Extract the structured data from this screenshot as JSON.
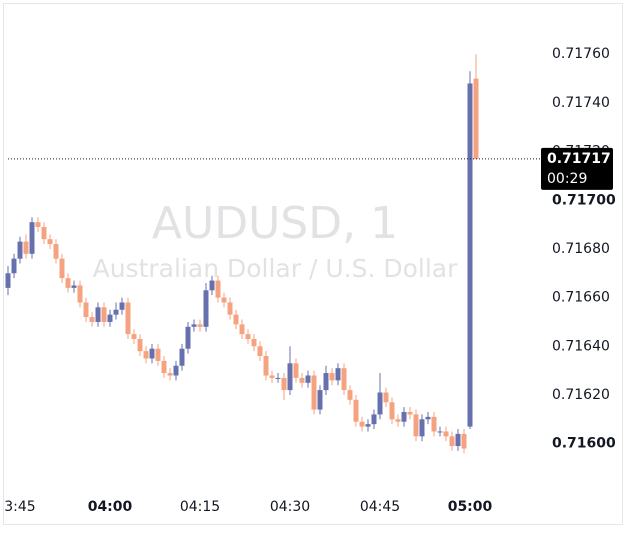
{
  "chart_data": {
    "type": "candlestick",
    "watermark_title": "AUDUSD, 1",
    "watermark_subtitle": "Australian Dollar / U.S. Dollar",
    "up_color": "#6670ac",
    "down_color": "#f4a27f",
    "x": [
      "03:43",
      "03:44",
      "03:45",
      "03:46",
      "03:47",
      "03:48",
      "03:49",
      "03:50",
      "03:51",
      "03:52",
      "03:53",
      "03:54",
      "03:55",
      "03:56",
      "03:57",
      "03:58",
      "03:59",
      "04:00",
      "04:01",
      "04:02",
      "04:03",
      "04:04",
      "04:05",
      "04:06",
      "04:07",
      "04:08",
      "04:09",
      "04:10",
      "04:11",
      "04:12",
      "04:13",
      "04:14",
      "04:15",
      "04:16",
      "04:17",
      "04:18",
      "04:19",
      "04:20",
      "04:21",
      "04:22",
      "04:23",
      "04:24",
      "04:25",
      "04:26",
      "04:27",
      "04:28",
      "04:29",
      "04:30",
      "04:31",
      "04:32",
      "04:33",
      "04:34",
      "04:35",
      "04:36",
      "04:37",
      "04:38",
      "04:39",
      "04:40",
      "04:41",
      "04:42",
      "04:43",
      "04:44",
      "04:45",
      "04:46",
      "04:47",
      "04:48",
      "04:49",
      "04:50",
      "04:51",
      "04:52",
      "04:53",
      "04:54",
      "04:55",
      "04:56",
      "04:57",
      "04:58",
      "04:59",
      "05:00",
      "05:01"
    ],
    "open": [
      0.71664,
      0.7167,
      0.71676,
      0.71683,
      0.71678,
      0.71691,
      0.71689,
      0.71684,
      0.71682,
      0.71676,
      0.71668,
      0.71664,
      0.71665,
      0.71658,
      0.71652,
      0.7165,
      0.71656,
      0.7165,
      0.71653,
      0.71655,
      0.71658,
      0.71645,
      0.71643,
      0.71638,
      0.71635,
      0.71639,
      0.71634,
      0.71629,
      0.71628,
      0.71632,
      0.71639,
      0.71648,
      0.71649,
      0.71648,
      0.71663,
      0.71667,
      0.7166,
      0.71658,
      0.71653,
      0.71649,
      0.71645,
      0.71643,
      0.7164,
      0.71636,
      0.71628,
      0.71627,
      0.71627,
      0.71622,
      0.71633,
      0.71627,
      0.71625,
      0.71628,
      0.71614,
      0.71622,
      0.71629,
      0.71626,
      0.71631,
      0.71622,
      0.71618,
      0.71609,
      0.71607,
      0.71608,
      0.71612,
      0.71621,
      0.71617,
      0.7161,
      0.71609,
      0.71613,
      0.71612,
      0.71603,
      0.7161,
      0.71611,
      0.71605,
      0.71605,
      0.71603,
      0.71599,
      0.71604,
      0.71607,
      0.7175
    ],
    "high": [
      0.71673,
      0.71678,
      0.71685,
      0.71686,
      0.71693,
      0.71693,
      0.71691,
      0.71686,
      0.71684,
      0.71678,
      0.7167,
      0.71667,
      0.71667,
      0.7166,
      0.71654,
      0.71658,
      0.71658,
      0.71655,
      0.71658,
      0.7166,
      0.7166,
      0.71647,
      0.71645,
      0.7164,
      0.71641,
      0.71641,
      0.71636,
      0.71631,
      0.71634,
      0.71641,
      0.7165,
      0.71651,
      0.71651,
      0.71666,
      0.71669,
      0.71669,
      0.71662,
      0.7166,
      0.71655,
      0.71651,
      0.71647,
      0.71645,
      0.71642,
      0.71638,
      0.7163,
      0.71629,
      0.71629,
      0.7164,
      0.71635,
      0.71629,
      0.7163,
      0.7163,
      0.71624,
      0.71632,
      0.71631,
      0.71633,
      0.71633,
      0.71624,
      0.7162,
      0.71611,
      0.7161,
      0.71614,
      0.71629,
      0.71623,
      0.71619,
      0.71612,
      0.71615,
      0.71615,
      0.71614,
      0.71612,
      0.71613,
      0.71613,
      0.71607,
      0.71607,
      0.71605,
      0.71606,
      0.71606,
      0.71753,
      0.7176
    ],
    "low": [
      0.71661,
      0.71668,
      0.71674,
      0.71676,
      0.71676,
      0.71687,
      0.71682,
      0.7168,
      0.71674,
      0.71666,
      0.71662,
      0.71662,
      0.71656,
      0.7165,
      0.71648,
      0.71648,
      0.71648,
      0.71648,
      0.71651,
      0.71653,
      0.71643,
      0.71641,
      0.71636,
      0.71633,
      0.71633,
      0.71632,
      0.71627,
      0.71626,
      0.71626,
      0.7163,
      0.71637,
      0.71646,
      0.71646,
      0.71646,
      0.71661,
      0.71658,
      0.71656,
      0.71651,
      0.71647,
      0.71643,
      0.71641,
      0.71638,
      0.71634,
      0.71626,
      0.71625,
      0.71625,
      0.71618,
      0.7162,
      0.71625,
      0.71623,
      0.71623,
      0.71612,
      0.71612,
      0.7162,
      0.71624,
      0.71624,
      0.7162,
      0.71616,
      0.71607,
      0.71605,
      0.71605,
      0.71606,
      0.7161,
      0.71615,
      0.71608,
      0.71607,
      0.71607,
      0.7161,
      0.71601,
      0.71601,
      0.71608,
      0.71603,
      0.71603,
      0.71601,
      0.71597,
      0.71597,
      0.71596,
      0.71606,
      0.71717
    ],
    "close": [
      0.7167,
      0.71676,
      0.71683,
      0.71678,
      0.71691,
      0.71689,
      0.71684,
      0.71682,
      0.71676,
      0.71668,
      0.71664,
      0.71665,
      0.71658,
      0.71652,
      0.7165,
      0.71656,
      0.7165,
      0.71653,
      0.71655,
      0.71658,
      0.71645,
      0.71643,
      0.71638,
      0.71635,
      0.71639,
      0.71634,
      0.71629,
      0.71628,
      0.71632,
      0.71639,
      0.71648,
      0.71649,
      0.71648,
      0.71663,
      0.71667,
      0.7166,
      0.71658,
      0.71653,
      0.71649,
      0.71645,
      0.71643,
      0.7164,
      0.71636,
      0.71628,
      0.71627,
      0.71627,
      0.71622,
      0.71633,
      0.71627,
      0.71625,
      0.71628,
      0.71614,
      0.71622,
      0.71629,
      0.71626,
      0.71631,
      0.71622,
      0.71618,
      0.71609,
      0.71607,
      0.71608,
      0.71612,
      0.71621,
      0.71617,
      0.7161,
      0.71609,
      0.71613,
      0.71612,
      0.71603,
      0.7161,
      0.71611,
      0.71605,
      0.71605,
      0.71603,
      0.71599,
      0.71604,
      0.71598,
      0.71748,
      0.71717
    ],
    "xlim": [
      "03:43",
      "05:11"
    ],
    "xticks": [
      {
        "value": "03:45",
        "label": "3:45"
      },
      {
        "value": "04:00",
        "label": "04:00",
        "bold": true
      },
      "04:15",
      "04:30",
      "04:45",
      {
        "value": "05:00",
        "label": "05:00",
        "bold": true
      }
    ],
    "ylim": [
      0.71583,
      0.71779
    ],
    "yticks": [
      {
        "value": 0.716,
        "label": "0.71600",
        "bold": true
      },
      {
        "value": 0.7162,
        "label": "0.71620"
      },
      {
        "value": 0.7164,
        "label": "0.71640"
      },
      {
        "value": 0.7166,
        "label": "0.71660"
      },
      {
        "value": 0.7168,
        "label": "0.71680"
      },
      {
        "value": 0.717,
        "label": "0.71700",
        "bold": true
      },
      {
        "value": 0.7172,
        "label": "0.71720"
      },
      {
        "value": 0.7174,
        "label": "0.71740"
      },
      {
        "value": 0.7176,
        "label": "0.71760"
      }
    ],
    "last_price": 0.71717,
    "countdown": "00:29"
  }
}
